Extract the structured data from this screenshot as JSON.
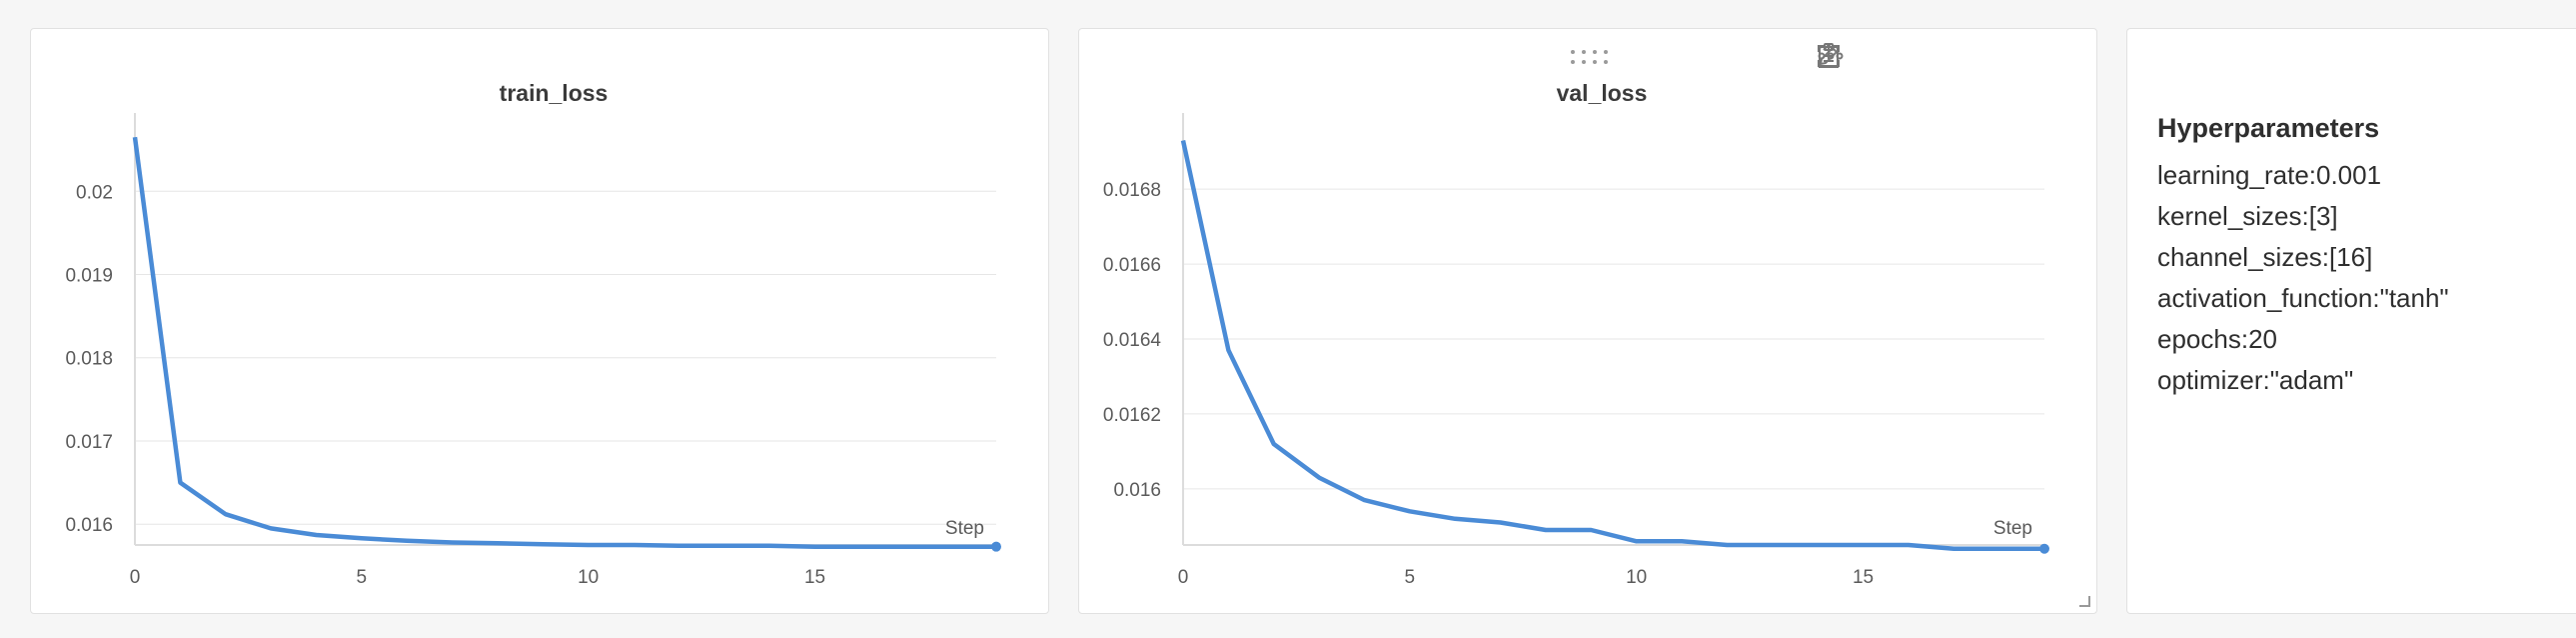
{
  "colors": {
    "line": "#4a8bd6",
    "grid": "#e6e6e6",
    "axis": "#dcdcdc"
  },
  "chart_data": [
    {
      "type": "line",
      "title": "train_loss",
      "xlabel": "Step",
      "ylabel": "",
      "xlim": [
        0,
        19
      ],
      "ylim": [
        0.01575,
        0.0207
      ],
      "xticks": [
        0,
        5,
        10,
        15
      ],
      "yticks": [
        0.016,
        0.017,
        0.018,
        0.019,
        0.02
      ],
      "ytick_labels": [
        "0.016",
        "0.017",
        "0.018",
        "0.019",
        "0.02"
      ],
      "grid": true,
      "x": [
        0,
        1,
        2,
        3,
        4,
        5,
        6,
        7,
        8,
        9,
        10,
        11,
        12,
        13,
        14,
        15,
        16,
        17,
        18,
        19
      ],
      "series": [
        {
          "values": [
            0.02065,
            0.0165,
            0.01612,
            0.01595,
            0.01587,
            0.01583,
            0.0158,
            0.01578,
            0.01577,
            0.01576,
            0.01575,
            0.01575,
            0.01574,
            0.01574,
            0.01574,
            0.01573,
            0.01573,
            0.01573,
            0.01573,
            0.01573
          ]
        }
      ]
    },
    {
      "type": "line",
      "title": "val_loss",
      "xlabel": "Step",
      "ylabel": "",
      "xlim": [
        0,
        19
      ],
      "ylim": [
        0.01585,
        0.01695
      ],
      "xticks": [
        0,
        5,
        10,
        15
      ],
      "yticks": [
        0.016,
        0.0162,
        0.0164,
        0.0166,
        0.0168
      ],
      "ytick_labels": [
        "0.016",
        "0.0162",
        "0.0164",
        "0.0166",
        "0.0168"
      ],
      "grid": true,
      "x": [
        0,
        1,
        2,
        3,
        4,
        5,
        6,
        7,
        8,
        9,
        10,
        11,
        12,
        13,
        14,
        15,
        16,
        17,
        18,
        19
      ],
      "series": [
        {
          "values": [
            0.01693,
            0.01637,
            0.01612,
            0.01603,
            0.01597,
            0.01594,
            0.01592,
            0.01591,
            0.01589,
            0.01589,
            0.01586,
            0.01586,
            0.01585,
            0.01585,
            0.01585,
            0.01585,
            0.01585,
            0.01584,
            0.01584,
            0.01584
          ]
        }
      ]
    }
  ],
  "toolbar": {
    "icons": [
      "clipboard-icon",
      "share-icon",
      "edit-icon",
      "fullscreen-icon",
      "more-icon"
    ]
  },
  "hyperparameters": {
    "title": "Hyperparameters",
    "items": [
      "learning_rate:0.001",
      "kernel_sizes:[3]",
      "channel_sizes:[16]",
      "activation_function:\"tanh\"",
      "epochs:20",
      "optimizer:\"adam\""
    ]
  }
}
